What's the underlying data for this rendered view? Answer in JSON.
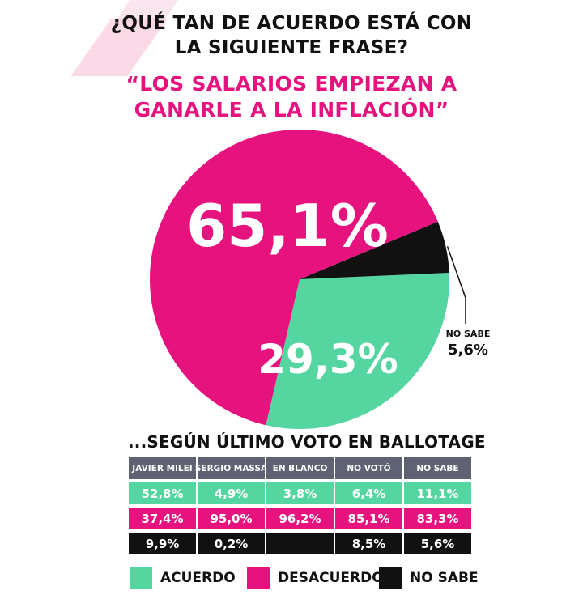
{
  "heading": {
    "question_line1": "¿QUÉ TAN DE ACUERDO ESTÁ CON",
    "question_line2": "LA SIGUIENTE FRASE?",
    "quote_line1": "“LOS SALARIOS EMPIEZAN A",
    "quote_line2": "GANARLE A LA INFLACIÓN”"
  },
  "colors": {
    "acuerdo": "#55d6a0",
    "desacuerdo": "#e6137f",
    "no_sabe": "#111111",
    "header": "#5e6272"
  },
  "chart_data": [
    {
      "type": "pie",
      "slices": [
        {
          "label": "ACUERDO",
          "value": 29.3,
          "display": "29,3%",
          "color": "#55d6a0"
        },
        {
          "label": "DESACUERDO",
          "value": 65.1,
          "display": "65,1%",
          "color": "#e6137f"
        },
        {
          "label": "NO SABE",
          "value": 5.6,
          "display": "5,6%",
          "color": "#111111"
        }
      ],
      "callout": {
        "label": "NO SABE",
        "value": "5,6%"
      }
    },
    {
      "type": "table",
      "title": "...SEGÚN ÚLTIMO VOTO EN BALLOTAGE",
      "columns": [
        "JAVIER MILEI",
        "SERGIO MASSA",
        "EN BLANCO",
        "NO VOTÓ",
        "NO SABE"
      ],
      "rows": [
        {
          "series": "ACUERDO",
          "values": [
            "52,8%",
            "4,9%",
            "3,8%",
            "6,4%",
            "11,1%"
          ]
        },
        {
          "series": "DESACUERDO",
          "values": [
            "37,4%",
            "95,0%",
            "96,2%",
            "85,1%",
            "83,3%"
          ]
        },
        {
          "series": "NO SABE",
          "values": [
            "9,9%",
            "0,2%",
            "",
            "8,5%",
            "5,6%"
          ]
        }
      ]
    }
  ],
  "legend": [
    {
      "label": "ACUERDO",
      "color": "#55d6a0"
    },
    {
      "label": "DESACUERDO",
      "color": "#e6137f"
    },
    {
      "label": "NO SABE",
      "color": "#111111"
    }
  ]
}
